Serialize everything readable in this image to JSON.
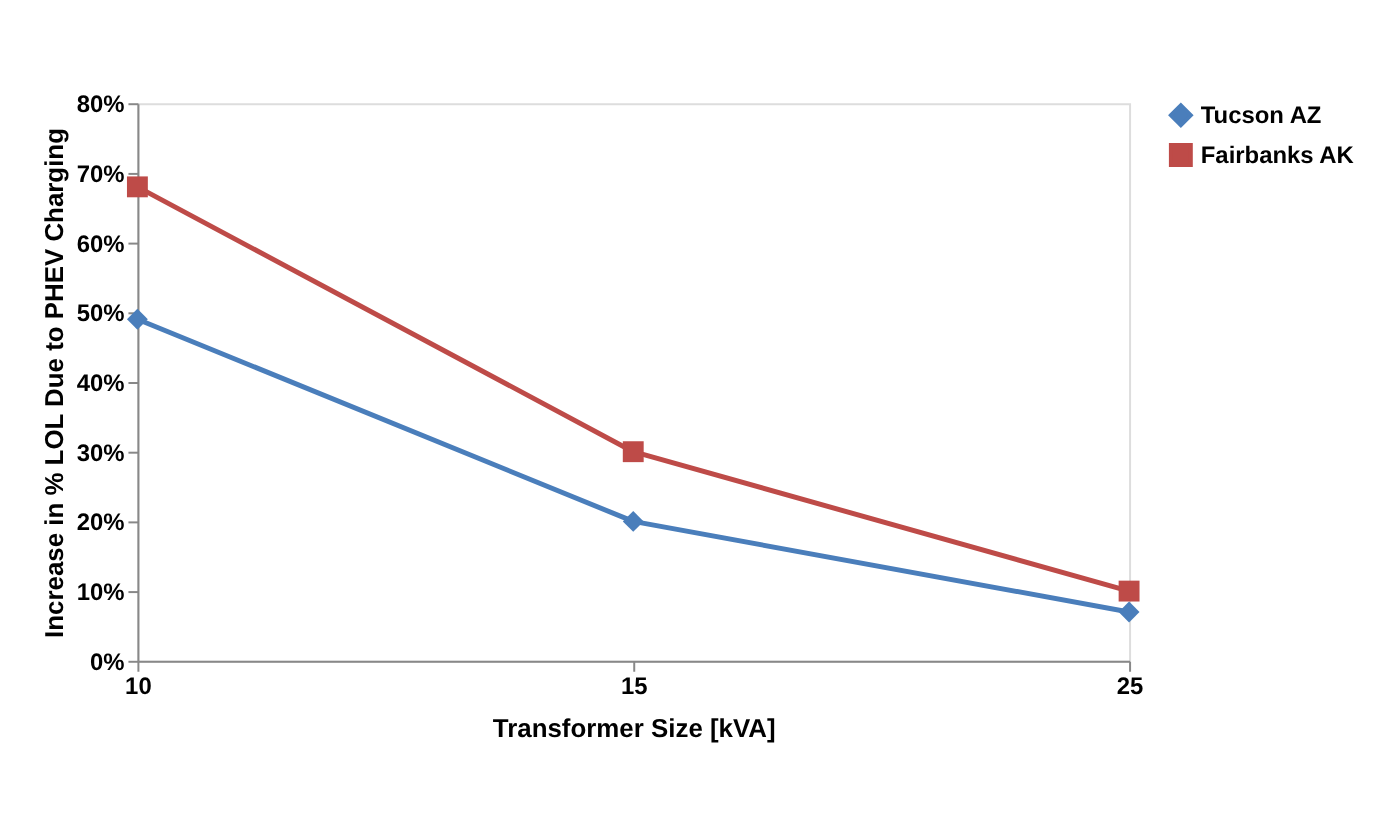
{
  "chart_data": {
    "type": "line",
    "xlabel": "Transformer Size [kVA]",
    "ylabel": "Increase in % LOL Due to PHEV Charging",
    "categories": [
      "10",
      "15",
      "25"
    ],
    "series": [
      {
        "name": "Tucson AZ",
        "color": "#4a7ebb",
        "values": [
          49,
          20,
          7
        ],
        "marker": "diamond"
      },
      {
        "name": "Fairbanks AK",
        "color": "#be4b48",
        "values": [
          68,
          30,
          10
        ],
        "marker": "square"
      }
    ],
    "ylim": [
      0,
      80
    ],
    "yticks": [
      {
        "value": 0,
        "label": "0%"
      },
      {
        "value": 10,
        "label": "10%"
      },
      {
        "value": 20,
        "label": "20%"
      },
      {
        "value": 30,
        "label": "30%"
      },
      {
        "value": 40,
        "label": "40%"
      },
      {
        "value": 50,
        "label": "50%"
      },
      {
        "value": 60,
        "label": "60%"
      },
      {
        "value": 70,
        "label": "70%"
      },
      {
        "value": 80,
        "label": "80%"
      }
    ],
    "grid": false,
    "legend": "right",
    "line_style": "solid"
  }
}
